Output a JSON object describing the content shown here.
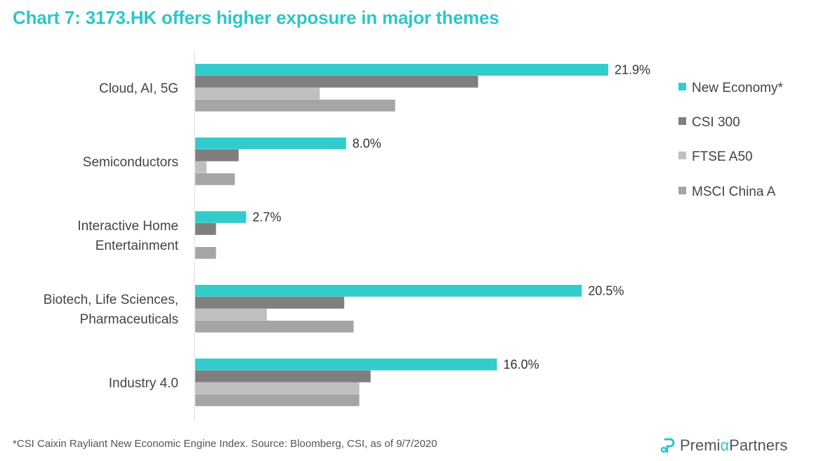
{
  "title": "Chart 7: 3173.HK offers higher exposure in major themes",
  "footnote": "*CSI Caixin Rayliant New Economic Engine Index. Source: Bloomberg, CSI, as of 9/7/2020",
  "brand": {
    "name_part1": "Premi",
    "name_alpha": "α",
    "name_part2": " Partners"
  },
  "colors": {
    "title": "#2ec6c8",
    "new_economy": "#33cccc",
    "csi300": "#7f7f7f",
    "ftse_a50": "#bfbfbf",
    "msci_china_a": "#a5a5a5"
  },
  "chart_data": {
    "type": "bar",
    "orientation": "horizontal",
    "categories": [
      [
        "Cloud, AI, 5G"
      ],
      [
        "Semiconductors"
      ],
      [
        "Interactive Home",
        "Entertainment"
      ],
      [
        "Biotech, Life Sciences,",
        "Pharmaceuticals"
      ],
      [
        "Industry 4.0"
      ]
    ],
    "series": [
      {
        "name": "New Economy*",
        "color": "#33cccc",
        "values": [
          21.9,
          8.0,
          2.7,
          20.5,
          16.0
        ],
        "labels": [
          "21.9%",
          "8.0%",
          "2.7%",
          "20.5%",
          "16.0%"
        ]
      },
      {
        "name": "CSI 300",
        "color": "#7f7f7f",
        "values": [
          15.0,
          2.3,
          1.1,
          7.9,
          9.3
        ]
      },
      {
        "name": "FTSE A50",
        "color": "#bfbfbf",
        "values": [
          6.6,
          0.6,
          0.0,
          3.8,
          8.7
        ]
      },
      {
        "name": "MSCI China A",
        "color": "#a5a5a5",
        "values": [
          10.6,
          2.1,
          1.1,
          8.4,
          8.7
        ]
      }
    ],
    "xlim": [
      0,
      25
    ],
    "legend": "right"
  }
}
